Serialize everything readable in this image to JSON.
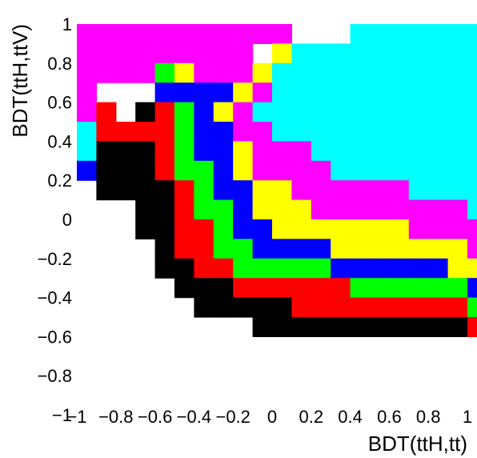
{
  "chart_data": {
    "type": "heatmap",
    "title": "",
    "xlabel": "BDT(ttH,tt)",
    "ylabel": "BDT(ttH,ttV)",
    "xlim": [
      -1,
      1
    ],
    "ylim": [
      -1,
      1
    ],
    "grid": false,
    "xticks": [
      -1,
      -0.8,
      -0.6,
      -0.4,
      -0.2,
      0,
      0.2,
      0.4,
      0.6,
      0.8,
      1
    ],
    "yticks": [
      -1,
      -0.8,
      -0.6,
      -0.4,
      -0.2,
      0,
      0.2,
      0.4,
      0.6,
      0.8,
      1
    ],
    "xtick_labels": [
      "−1",
      "−0.8",
      "−0.6",
      "−0.4",
      "−0.2",
      "0",
      "0.2",
      "0.4",
      "0.6",
      "0.8",
      "1"
    ],
    "ytick_labels": [
      "−1",
      "−0.8",
      "−0.6",
      "−0.4",
      "−0.2",
      "0",
      "0.2",
      "0.4",
      "0.6",
      "0.8",
      "1"
    ],
    "cell_size": 0.1,
    "row_origin_y": 0.9,
    "row_step_y": -0.1,
    "col_origin_x": -1.0,
    "legend": "KBGYRMCkW = black, blue, green, yellow, red, magenta, cyan, black(empty skipped)",
    "color_key": {
      "K": "#000000",
      "B": "#0000ff",
      "G": "#00ff00",
      "Y": "#ffff00",
      "R": "#ff0000",
      "M": "#ff00ff",
      "C": "#00ffff"
    },
    "rows": [
      "MMMMMMMMMMM...CCCCCCC",
      "MMMMMMMMM.YCCCCCCCCCC",
      "MMMMGYMMMYCCCCCCCCCCC",
      "M...BBBBYMCCCCCCCCCCC",
      "MR.KRGBYMCCCCCCCCCCCC",
      "CRRRRGBBMMCCCCCCCCCCC",
      "CKKKRGBBYMMMCCCCCCCCC",
      "BKKKRGGBYMMMMCCCCCCCC",
      ".KKKKRGBBYYMMMMMMCCCC",
      "...KKRGGBYYYMMMMMMMMC",
      "...KKRRGBBYYYYYYYMMMM",
      "....KRRGGBBBBYYYYYYYM",
      "....KKRRGGGGGBBBBBBYY",
      ".....KKKRRRRRRGGGGGGB",
      "......KKKKKRRRRRRRRRG",
      ".........KKKKKKKKKKKR"
    ],
    "rows_note": "",
    "layout_hint": ""
  }
}
